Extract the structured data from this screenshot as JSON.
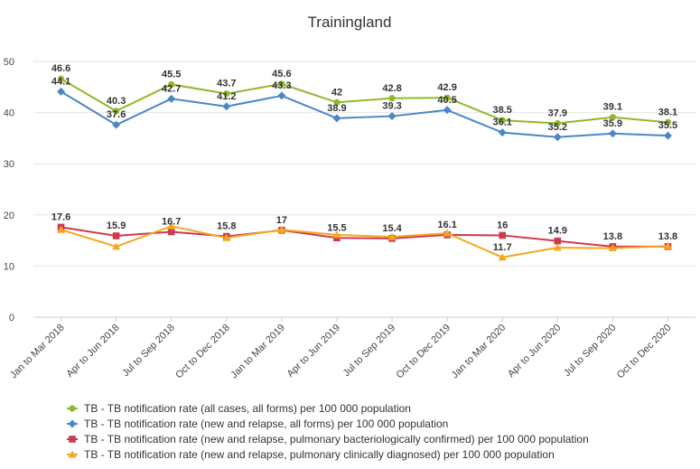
{
  "chart_data": {
    "type": "line",
    "title": "Trainingland",
    "categories": [
      "Jan to Mar 2018",
      "Apr to Jun 2018",
      "Jul to Sep 2018",
      "Oct to Dec 2018",
      "Jan to Mar 2019",
      "Apr to Jun 2019",
      "Jul to Sep 2019",
      "Oct to Dec 2019",
      "Jan to Mar 2020",
      "Apr to Jun 2020",
      "Jul to Sep 2020",
      "Oct to Dec 2020"
    ],
    "ylim": [
      0,
      50
    ],
    "yticks": [
      0,
      10,
      20,
      30,
      40,
      50
    ],
    "grid": true,
    "legend_position": "bottom",
    "series": [
      {
        "name": "TB - TB notification rate (all cases, all forms) per 100 000 population",
        "color": "#90b82c",
        "marker": "circle",
        "values": [
          46.6,
          40.3,
          45.5,
          43.7,
          45.6,
          42,
          42.8,
          42.9,
          38.5,
          37.9,
          39.1,
          38.1
        ],
        "labels": "above"
      },
      {
        "name": "TB - TB notification rate (new and relapse, all forms) per 100 000 population",
        "color": "#4a86c8",
        "marker": "diamond",
        "values": [
          44.1,
          37.6,
          42.7,
          41.2,
          43.3,
          38.9,
          39.3,
          40.5,
          36.1,
          35.2,
          35.9,
          35.5
        ],
        "labels": "above"
      },
      {
        "name": "TB - TB notification rate (new and relapse, pulmonary bacteriologically confirmed) per 100 000 population",
        "color": "#cc3b4c",
        "marker": "square",
        "values": [
          17.6,
          15.9,
          16.7,
          15.8,
          17,
          15.5,
          15.4,
          16.1,
          16,
          14.9,
          13.8,
          13.8
        ],
        "labels": "above"
      },
      {
        "name": "TB - TB notification rate (new and relapse, pulmonary clinically diagnosed) per 100 000 population",
        "color": "#f5a623",
        "marker": "triangle",
        "values": [
          17.1,
          13.8,
          17.8,
          15.5,
          17.1,
          16.1,
          15.7,
          16.4,
          11.7,
          13.6,
          13.5,
          13.9
        ],
        "labels": [
          null,
          null,
          null,
          null,
          null,
          null,
          null,
          null,
          "11.7",
          null,
          null,
          null
        ]
      }
    ]
  }
}
